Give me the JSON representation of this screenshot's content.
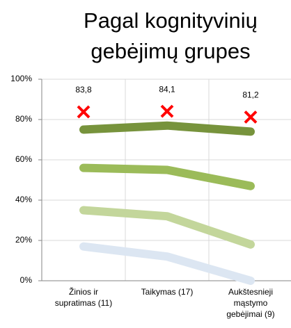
{
  "chart_data": {
    "type": "line",
    "title": "Pagal kognityvinių\ngebėjimų grupes",
    "categories": [
      "Žinios ir\nsupratimas (11)",
      "Taikymas (17)",
      "Aukštesnieji\nmąstymo\ngebėjimai (9)"
    ],
    "series": [
      {
        "color": "#77933c",
        "values": [
          75,
          77,
          74
        ]
      },
      {
        "color": "#9bbb59",
        "values": [
          56,
          55,
          47
        ]
      },
      {
        "color": "#c3d69b",
        "values": [
          35,
          32,
          18
        ]
      },
      {
        "color": "#dce6f2",
        "values": [
          17,
          12,
          0
        ]
      }
    ],
    "points": {
      "color": "#ff0000",
      "values": [
        83.8,
        84.1,
        81.2
      ],
      "value_labels": [
        "83,8",
        "84,1",
        "81,2"
      ]
    },
    "ylim": [
      0,
      100
    ],
    "yticks": [
      {
        "value": 0,
        "label": "0%"
      },
      {
        "value": 20,
        "label": "20%"
      },
      {
        "value": 40,
        "label": "40%"
      },
      {
        "value": 60,
        "label": "60%"
      },
      {
        "value": 80,
        "label": "80%"
      },
      {
        "value": 100,
        "label": "100%"
      }
    ],
    "grid": true
  }
}
